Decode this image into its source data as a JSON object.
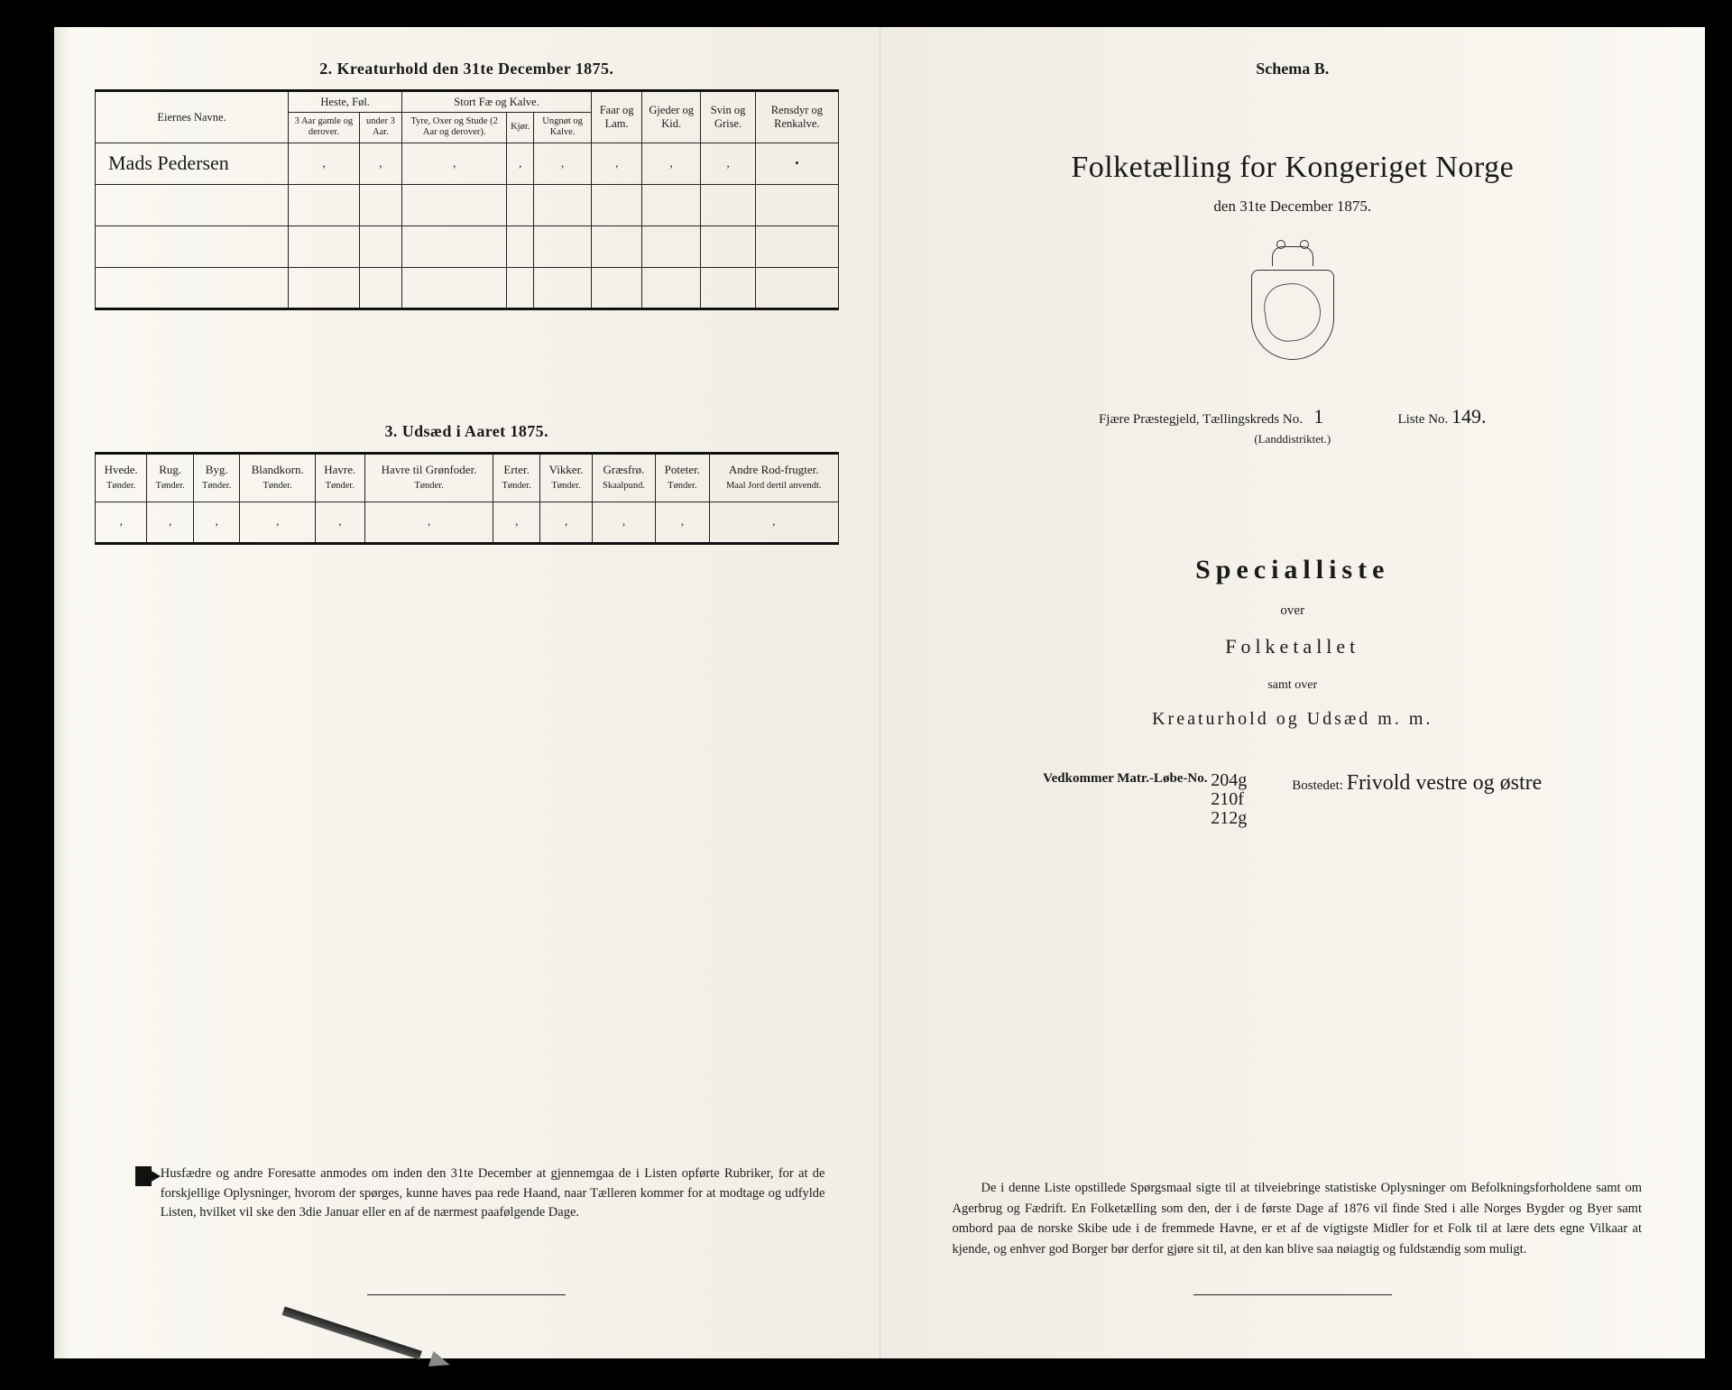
{
  "left_page": {
    "table2": {
      "title": "2.  Kreaturhold den 31te December 1875.",
      "col_owner": "Eiernes Navne.",
      "group_heste": "Heste, Føl.",
      "heste_sub1": "3 Aar gamle og derover.",
      "heste_sub2": "under 3 Aar.",
      "group_stort": "Stort Fæ og Kalve.",
      "stort_sub1": "Tyre, Oxer og Stude (2 Aar og derover).",
      "stort_sub2": "Kjør.",
      "stort_sub3": "Ungnøt og Kalve.",
      "col_faar": "Faar og Lam.",
      "col_gjeder": "Gjeder og Kid.",
      "col_svin": "Svin og Grise.",
      "col_rensdyr": "Rensdyr og Renkalve.",
      "row1_owner": "Mads Pedersen",
      "marks": {
        "a": "‚",
        "b": "‚",
        "c": "‚",
        "d": "‚",
        "e": "‚",
        "f": "‚",
        "g": "‚",
        "h": "‚",
        "i": "•"
      }
    },
    "table3": {
      "title": "3.  Udsæd i Aaret 1875.",
      "cols": [
        {
          "h": "Hvede.",
          "s": "Tønder."
        },
        {
          "h": "Rug.",
          "s": "Tønder."
        },
        {
          "h": "Byg.",
          "s": "Tønder."
        },
        {
          "h": "Blandkorn.",
          "s": "Tønder."
        },
        {
          "h": "Havre.",
          "s": "Tønder."
        },
        {
          "h": "Havre til Grønfoder.",
          "s": "Tønder."
        },
        {
          "h": "Erter.",
          "s": "Tønder."
        },
        {
          "h": "Vikker.",
          "s": "Tønder."
        },
        {
          "h": "Græsfrø.",
          "s": "Skaalpund."
        },
        {
          "h": "Poteter.",
          "s": "Tønder."
        },
        {
          "h": "Andre Rod-frugter.",
          "s": "Maal Jord dertil anvendt."
        }
      ],
      "row_marks": [
        "‚",
        "‚",
        "‚",
        "‚",
        "‚",
        "‚",
        "‚",
        "‚",
        "‚",
        "‚",
        "‚"
      ]
    },
    "footnote": "Husfædre og andre Foresatte anmodes om inden den 31te December at gjennemgaa de i Listen opførte Rubriker, for at de forskjellige Oplysninger, hvorom der spørges, kunne haves paa rede Haand, naar Tælleren kommer for at modtage og udfylde Listen, hvilket vil ske den 3die Januar eller en af de nærmest paafølgende Dage."
  },
  "right_page": {
    "schema": "Schema B.",
    "title": "Folketælling for Kongeriget Norge",
    "subtitle": "den 31te December 1875.",
    "district_prefix": "Fjære",
    "district_label": "Præstegjeld, Tællingskreds No.",
    "district_no": "1",
    "land": "(Landdistriktet.)",
    "liste_label": "Liste No.",
    "liste_no": "149.",
    "spec_title": "Specialliste",
    "spec_over": "over",
    "spec_folketallet": "Folketallet",
    "spec_samt": "samt over",
    "spec_kreatur": "Kreaturhold og Udsæd m. m.",
    "vedk_label": "Vedkommer Matr.-Løbe-No.",
    "lobeno": [
      "204g",
      "210f",
      "212g"
    ],
    "bostedet_label": "Bostedet:",
    "bostedet_value": "Frivold vestre og østre",
    "footer": "De i denne Liste opstillede Spørgsmaal sigte til at tilveiebringe statistiske Oplysninger om Befolkningsforholdene samt om Agerbrug og Fædrift.  En Folketælling som den, der i de første Dage af 1876 vil finde Sted i alle Norges Bygder og Byer samt ombord paa de norske Skibe ude i de fremmede Havne, er et af de vigtigste Midler for et Folk til at lære dets egne Vilkaar at kjende, og enhver god Borger bør derfor gjøre sit til, at den kan blive saa nøiagtig og fuldstændig som muligt."
  }
}
